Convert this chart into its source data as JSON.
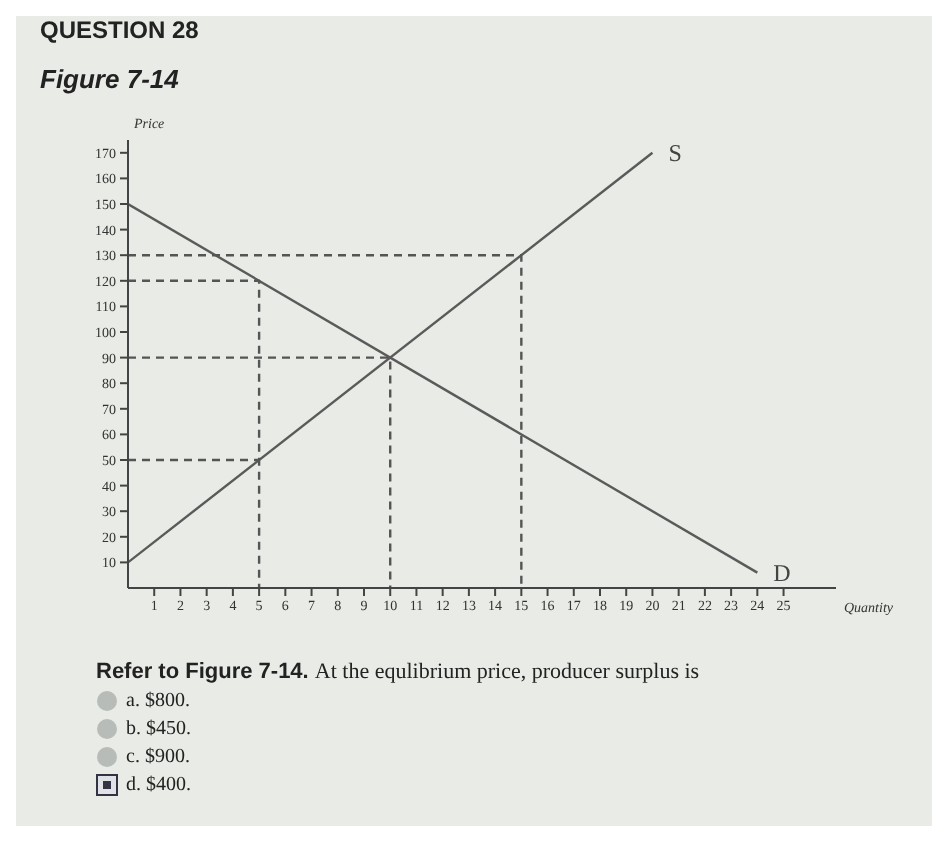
{
  "chart_data": {
    "type": "line",
    "title": "Figure 7-14",
    "xlabel": "Quantity",
    "ylabel": "Price",
    "xlim": [
      0,
      27
    ],
    "xticks": [
      1,
      2,
      3,
      4,
      5,
      6,
      7,
      8,
      9,
      10,
      11,
      12,
      13,
      14,
      15,
      16,
      17,
      18,
      19,
      20,
      21,
      22,
      23,
      24,
      25
    ],
    "ylim": [
      0,
      175
    ],
    "yticks": [
      10,
      20,
      30,
      40,
      50,
      60,
      70,
      80,
      90,
      100,
      110,
      120,
      130,
      140,
      150,
      160,
      170
    ],
    "marker": "none",
    "line_style": "solid",
    "series": [
      {
        "name": "S",
        "color": "#5a5a5a",
        "x": [
          0,
          20
        ],
        "values": [
          10,
          170
        ]
      },
      {
        "name": "D",
        "color": "#5a5a5a",
        "x": [
          0,
          24
        ],
        "values": [
          150,
          6
        ]
      },
      {
        "color": "#555555",
        "line_style": "dashed",
        "x": [
          0,
          15,
          15
        ],
        "values": [
          130,
          130,
          0
        ]
      },
      {
        "color": "#555555",
        "line_style": "dashed",
        "x": [
          0,
          5,
          5
        ],
        "values": [
          120,
          120,
          0
        ]
      },
      {
        "color": "#555555",
        "line_style": "dashed",
        "x": [
          0,
          10,
          10
        ],
        "values": [
          90,
          90,
          0
        ]
      },
      {
        "color": "#555555",
        "line_style": "dashed",
        "x": [
          0,
          5
        ],
        "values": [
          50,
          50
        ]
      }
    ],
    "annotations": [
      "QUESTION 28",
      "Refer to Figure 7-14.",
      "At the equlibrium price, producer surplus is",
      "a. $800.",
      "b. $450.",
      "c. $900.",
      "d. $400."
    ]
  }
}
